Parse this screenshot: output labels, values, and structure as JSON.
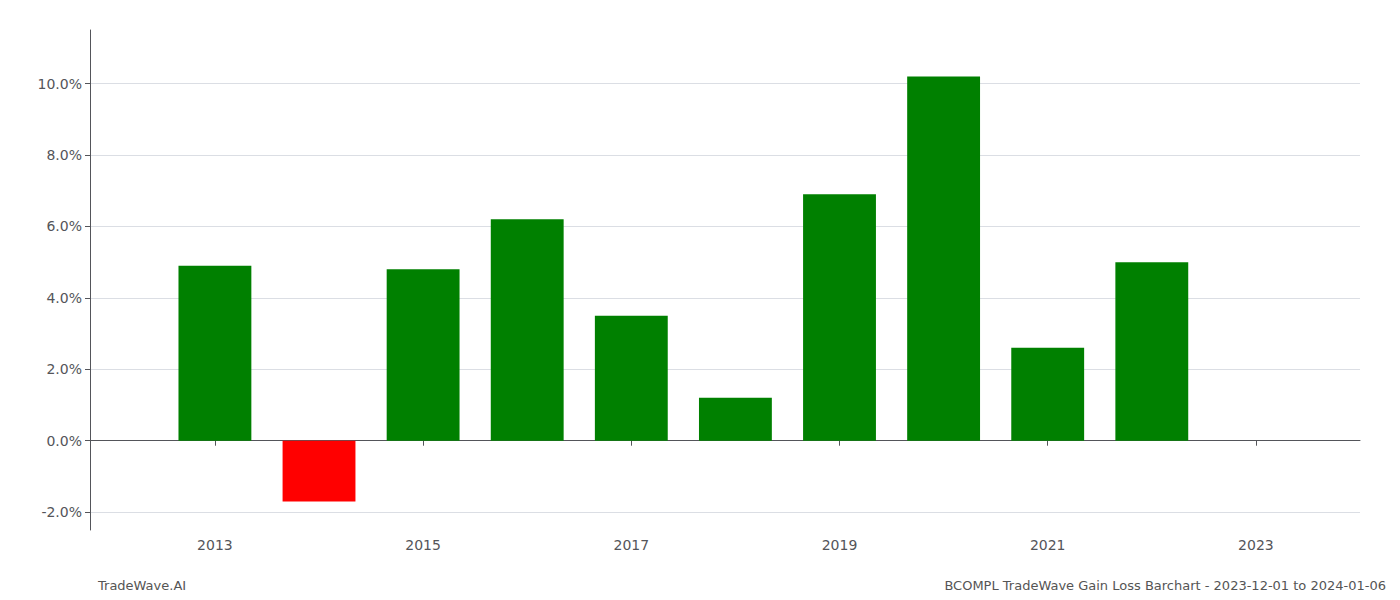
{
  "chart_data": {
    "type": "bar",
    "x": [
      2013,
      2014,
      2015,
      2016,
      2017,
      2018,
      2019,
      2020,
      2021,
      2022
    ],
    "values": [
      0.049,
      -0.017,
      0.048,
      0.062,
      0.035,
      0.012,
      0.069,
      0.102,
      0.026,
      0.05
    ],
    "colors": [
      "#008000",
      "#ff0000",
      "#008000",
      "#008000",
      "#008000",
      "#008000",
      "#008000",
      "#008000",
      "#008000",
      "#008000"
    ],
    "xlim": [
      2011.8,
      2024.0
    ],
    "xticks": [
      2013,
      2015,
      2017,
      2019,
      2021,
      2023
    ],
    "ylim": [
      -0.025,
      0.115
    ],
    "yticks": [
      {
        "value": -0.02,
        "label": "-2.0%"
      },
      {
        "value": 0.0,
        "label": "0.0%"
      },
      {
        "value": 0.02,
        "label": "2.0%"
      },
      {
        "value": 0.04,
        "label": "4.0%"
      },
      {
        "value": 0.06,
        "label": "6.0%"
      },
      {
        "value": 0.08,
        "label": "8.0%"
      },
      {
        "value": 0.1,
        "label": "10.0%"
      }
    ],
    "grid": true,
    "annotations": [
      "TradeWave.AI",
      "BCOMPL TradeWave Gain Loss Barchart - 2023-12-01 to 2024-01-06"
    ]
  }
}
